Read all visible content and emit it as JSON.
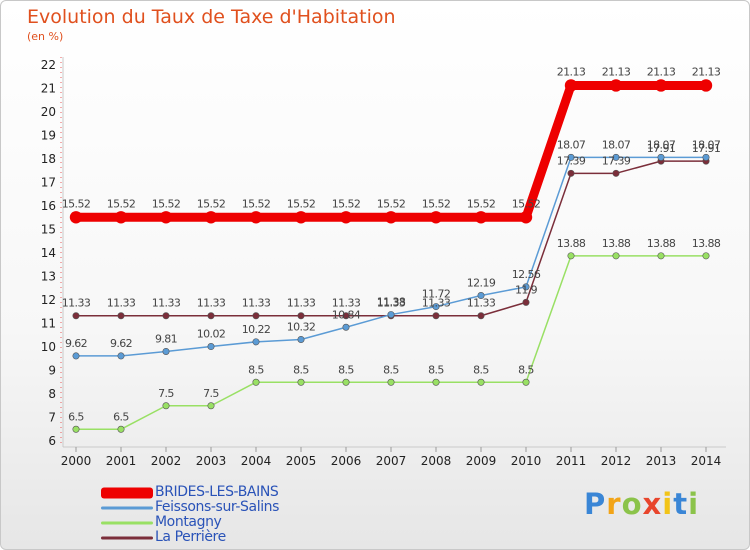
{
  "title": "Evolution du Taux de Taxe d'Habitation",
  "subtitle": "(en %)",
  "brand": "Proxiti",
  "chart_data": {
    "type": "line",
    "title": "Evolution du Taux de Taxe d'Habitation",
    "ylabel": "(en %)",
    "xlabel": "",
    "x": [
      "2000",
      "2001",
      "2002",
      "2003",
      "2004",
      "2005",
      "2006",
      "2007",
      "2008",
      "2009",
      "2010",
      "2011",
      "2012",
      "2013",
      "2014"
    ],
    "ylim": [
      6,
      22
    ],
    "yticks": [
      6,
      7,
      8,
      9,
      10,
      11,
      12,
      13,
      14,
      15,
      16,
      17,
      18,
      19,
      20,
      21,
      22
    ],
    "grid": false,
    "legend_position": "bottom-left",
    "series": [
      {
        "name": "BRIDES-LES-BAINS",
        "color": "#ee0000",
        "values": [
          15.52,
          15.52,
          15.52,
          15.52,
          15.52,
          15.52,
          15.52,
          15.52,
          15.52,
          15.52,
          15.52,
          21.13,
          21.13,
          21.13,
          21.13
        ]
      },
      {
        "name": "Feissons-sur-Salins",
        "color": "#5b9bd5",
        "values": [
          9.62,
          9.62,
          9.81,
          10.02,
          10.22,
          10.32,
          10.84,
          11.38,
          11.72,
          12.19,
          12.56,
          18.07,
          18.07,
          18.07,
          18.07
        ]
      },
      {
        "name": "Montagny",
        "color": "#99e064",
        "values": [
          6.5,
          6.5,
          7.5,
          7.5,
          8.5,
          8.5,
          8.5,
          8.5,
          8.5,
          8.5,
          8.5,
          13.88,
          13.88,
          13.88,
          13.88
        ]
      },
      {
        "name": "La Perrière",
        "color": "#7b2e3a",
        "values": [
          11.33,
          11.33,
          11.33,
          11.33,
          11.33,
          11.33,
          11.33,
          11.33,
          11.33,
          11.33,
          11.9,
          17.39,
          17.39,
          17.91,
          17.91
        ]
      }
    ]
  }
}
